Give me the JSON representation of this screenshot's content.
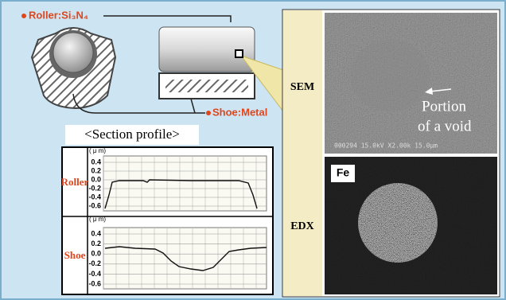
{
  "diagram": {
    "roller_label": "Roller:Si₃N₄",
    "shoe_label": "Shoe:Metal",
    "section_profile_title": "<Section profile>",
    "profiles": {
      "roller": {
        "label": "Roller",
        "unit": "( μ m)",
        "yticks": [
          "0.4",
          "0.2",
          "0.0",
          "-0.2",
          "-0.4",
          "-0.6"
        ]
      },
      "shoe": {
        "label": "Shoe",
        "unit": "( μ m)",
        "yticks": [
          "0.4",
          "0.2",
          "0.0",
          "-0.2",
          "-0.4",
          "-0.6"
        ]
      }
    },
    "sem": {
      "label": "SEM",
      "annotation_line1": "Portion",
      "annotation_line2": "of a void",
      "footer": "000294 15.0kV X2.00k 15.0μm"
    },
    "edx": {
      "label": "EDX",
      "element": "Fe"
    }
  }
}
